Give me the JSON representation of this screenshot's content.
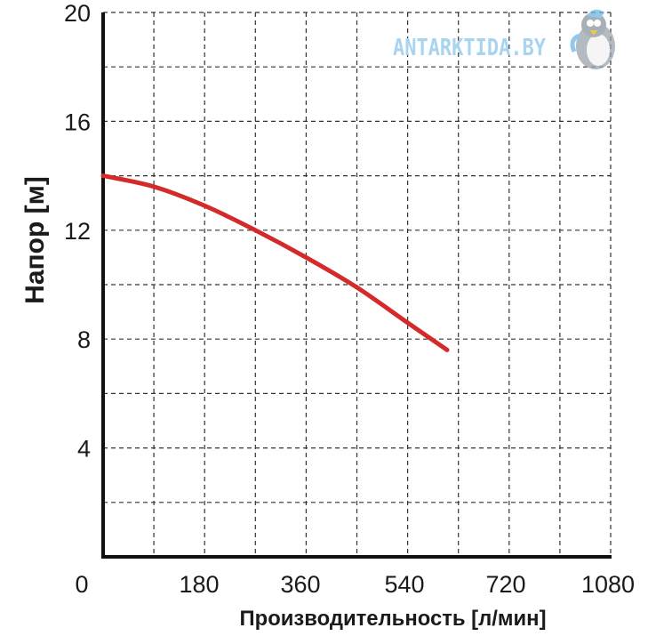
{
  "chart_data": {
    "type": "line",
    "xlabel": "Производительность [л/мин]",
    "ylabel": "Напор [м]",
    "x_tick_labels": [
      "0",
      "180",
      "360",
      "540",
      "720",
      "1080"
    ],
    "y_tick_labels": [
      "4",
      "8",
      "12",
      "16",
      "20"
    ],
    "y_range": [
      0,
      20
    ],
    "grid": true,
    "series": [
      {
        "color": "#d42a2a",
        "x": [
          0,
          90,
          180,
          270,
          360,
          450,
          540,
          610
        ],
        "y": [
          14.0,
          13.6,
          12.9,
          12.0,
          11.0,
          9.9,
          8.6,
          7.6
        ]
      }
    ]
  },
  "watermark": {
    "text": "ANTARKTIDA.BY",
    "logo": "penguin-mascot-icon"
  }
}
